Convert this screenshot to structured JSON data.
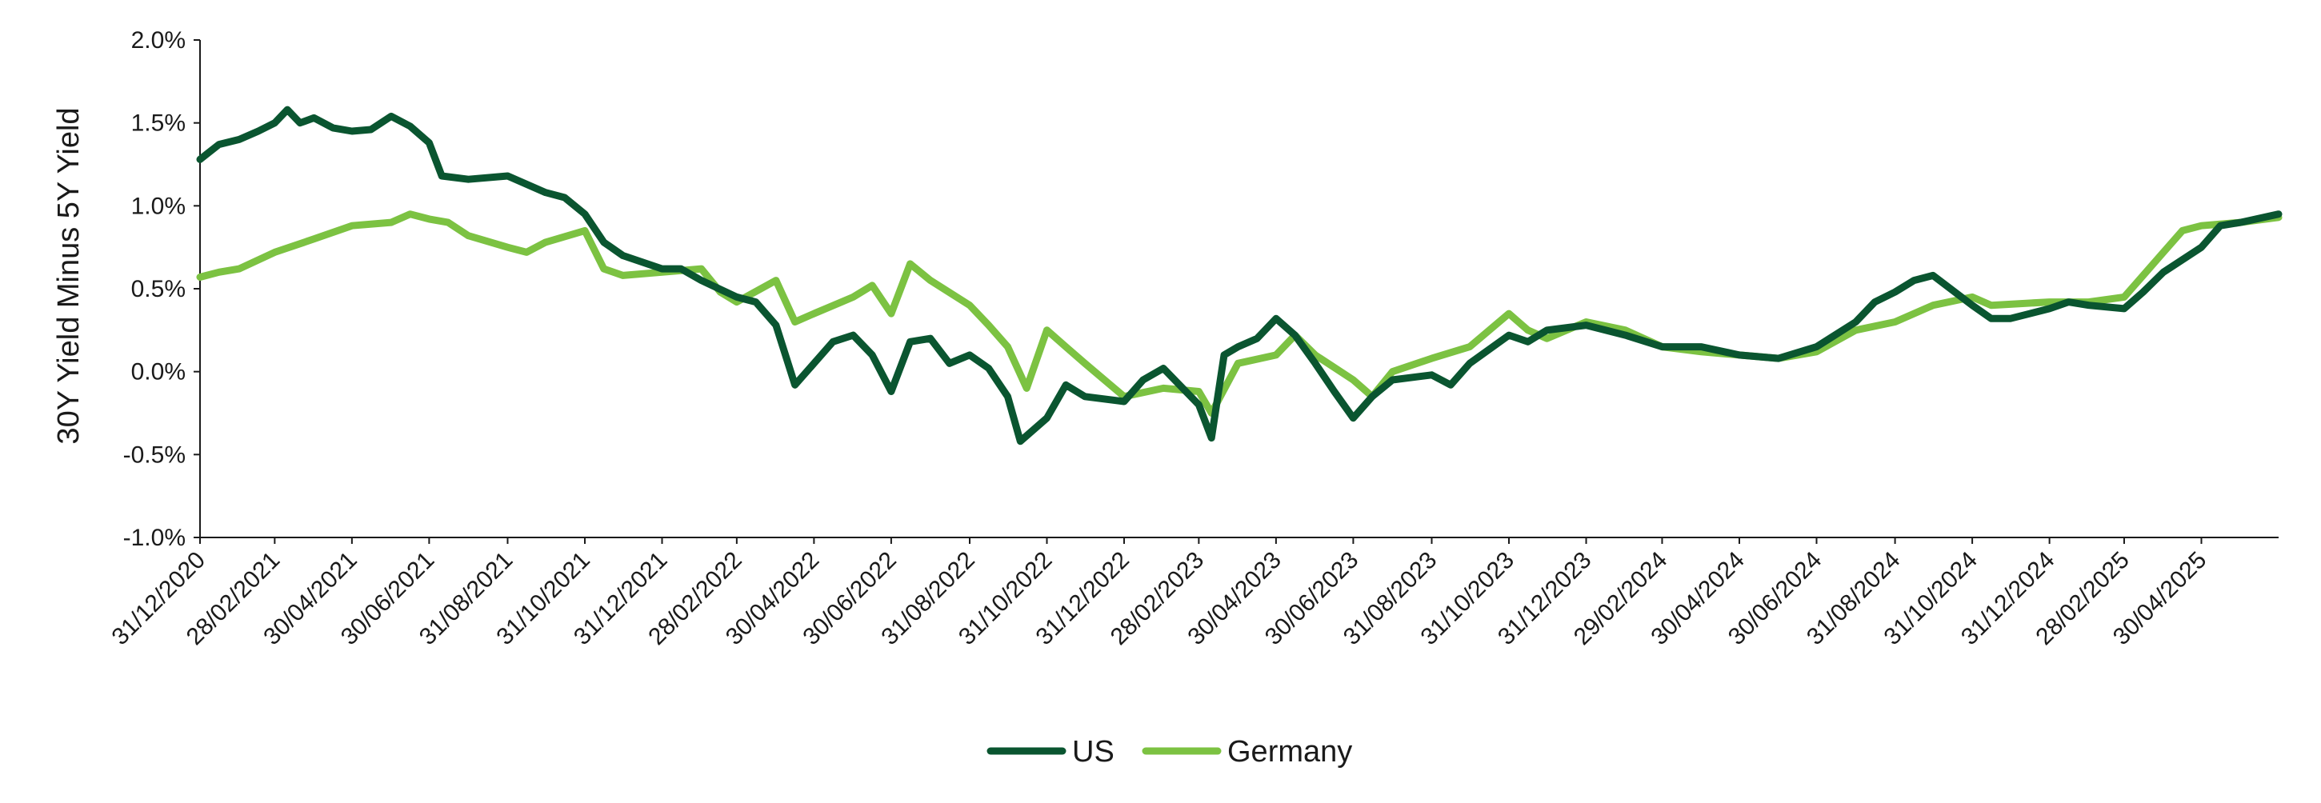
{
  "chart_data": {
    "type": "line",
    "title": "",
    "ylabel": "30Y Yield Minus 5Y Yield",
    "xlabel": "",
    "ylim": [
      -1.0,
      2.0
    ],
    "y_ticks": [
      -1.0,
      -0.5,
      0.0,
      0.5,
      1.0,
      1.5,
      2.0
    ],
    "y_tick_labels": [
      "-1.0%",
      "-0.5%",
      "0.0%",
      "0.5%",
      "1.0%",
      "1.5%",
      "2.0%"
    ],
    "x_tick_labels": [
      "31/12/2020",
      "28/02/2021",
      "30/04/2021",
      "30/06/2021",
      "31/08/2021",
      "31/10/2021",
      "31/12/2021",
      "28/02/2022",
      "30/04/2022",
      "30/06/2022",
      "31/08/2022",
      "31/10/2022",
      "31/12/2022",
      "28/02/2023",
      "30/04/2023",
      "30/06/2023",
      "31/08/2023",
      "31/10/2023",
      "31/12/2023",
      "29/02/2024",
      "30/04/2024",
      "30/06/2024",
      "31/08/2024",
      "31/10/2024",
      "31/12/2024",
      "28/02/2025",
      "30/04/2025"
    ],
    "x_end": "30/06/2025",
    "grid": false,
    "legend_position": "bottom-center",
    "series": [
      {
        "name": "US",
        "color": "#0a5530",
        "points": [
          [
            "31/12/2020",
            1.28
          ],
          [
            "15/01/2021",
            1.37
          ],
          [
            "31/01/2021",
            1.4
          ],
          [
            "15/02/2021",
            1.45
          ],
          [
            "28/02/2021",
            1.5
          ],
          [
            "10/03/2021",
            1.58
          ],
          [
            "20/03/2021",
            1.5
          ],
          [
            "31/03/2021",
            1.53
          ],
          [
            "15/04/2021",
            1.47
          ],
          [
            "30/04/2021",
            1.45
          ],
          [
            "15/05/2021",
            1.46
          ],
          [
            "31/05/2021",
            1.54
          ],
          [
            "15/06/2021",
            1.48
          ],
          [
            "30/06/2021",
            1.38
          ],
          [
            "10/07/2021",
            1.18
          ],
          [
            "31/07/2021",
            1.16
          ],
          [
            "31/08/2021",
            1.18
          ],
          [
            "15/09/2021",
            1.13
          ],
          [
            "30/09/2021",
            1.08
          ],
          [
            "15/10/2021",
            1.05
          ],
          [
            "31/10/2021",
            0.95
          ],
          [
            "15/11/2021",
            0.78
          ],
          [
            "30/11/2021",
            0.7
          ],
          [
            "31/12/2021",
            0.62
          ],
          [
            "15/01/2022",
            0.62
          ],
          [
            "31/01/2022",
            0.55
          ],
          [
            "28/02/2022",
            0.45
          ],
          [
            "15/03/2022",
            0.42
          ],
          [
            "31/03/2022",
            0.28
          ],
          [
            "15/04/2022",
            -0.08
          ],
          [
            "30/04/2022",
            0.05
          ],
          [
            "15/05/2022",
            0.18
          ],
          [
            "31/05/2022",
            0.22
          ],
          [
            "15/06/2022",
            0.1
          ],
          [
            "30/06/2022",
            -0.12
          ],
          [
            "15/07/2022",
            0.18
          ],
          [
            "31/07/2022",
            0.2
          ],
          [
            "15/08/2022",
            0.05
          ],
          [
            "31/08/2022",
            0.1
          ],
          [
            "15/09/2022",
            0.02
          ],
          [
            "30/09/2022",
            -0.15
          ],
          [
            "10/10/2022",
            -0.42
          ],
          [
            "31/10/2022",
            -0.28
          ],
          [
            "15/11/2022",
            -0.08
          ],
          [
            "30/11/2022",
            -0.15
          ],
          [
            "31/12/2022",
            -0.18
          ],
          [
            "15/01/2023",
            -0.05
          ],
          [
            "31/01/2023",
            0.02
          ],
          [
            "28/02/2023",
            -0.2
          ],
          [
            "10/03/2023",
            -0.4
          ],
          [
            "20/03/2023",
            0.1
          ],
          [
            "31/03/2023",
            0.15
          ],
          [
            "15/04/2023",
            0.2
          ],
          [
            "30/04/2023",
            0.32
          ],
          [
            "15/05/2023",
            0.22
          ],
          [
            "31/05/2023",
            0.05
          ],
          [
            "15/06/2023",
            -0.12
          ],
          [
            "30/06/2023",
            -0.28
          ],
          [
            "15/07/2023",
            -0.15
          ],
          [
            "31/07/2023",
            -0.05
          ],
          [
            "31/08/2023",
            -0.02
          ],
          [
            "15/09/2023",
            -0.08
          ],
          [
            "30/09/2023",
            0.05
          ],
          [
            "31/10/2023",
            0.22
          ],
          [
            "15/11/2023",
            0.18
          ],
          [
            "30/11/2023",
            0.25
          ],
          [
            "31/12/2023",
            0.28
          ],
          [
            "31/01/2024",
            0.22
          ],
          [
            "29/02/2024",
            0.15
          ],
          [
            "31/03/2024",
            0.15
          ],
          [
            "30/04/2024",
            0.1
          ],
          [
            "31/05/2024",
            0.08
          ],
          [
            "30/06/2024",
            0.15
          ],
          [
            "31/07/2024",
            0.3
          ],
          [
            "15/08/2024",
            0.42
          ],
          [
            "31/08/2024",
            0.48
          ],
          [
            "15/09/2024",
            0.55
          ],
          [
            "30/09/2024",
            0.58
          ],
          [
            "31/10/2024",
            0.4
          ],
          [
            "15/11/2024",
            0.32
          ],
          [
            "30/11/2024",
            0.32
          ],
          [
            "31/12/2024",
            0.38
          ],
          [
            "15/01/2025",
            0.42
          ],
          [
            "31/01/2025",
            0.4
          ],
          [
            "28/02/2025",
            0.38
          ],
          [
            "15/03/2025",
            0.48
          ],
          [
            "31/03/2025",
            0.6
          ],
          [
            "30/04/2025",
            0.75
          ],
          [
            "15/05/2025",
            0.88
          ],
          [
            "31/05/2025",
            0.9
          ],
          [
            "30/06/2025",
            0.95
          ]
        ]
      },
      {
        "name": "Germany",
        "color": "#7cc242",
        "points": [
          [
            "31/12/2020",
            0.57
          ],
          [
            "15/01/2021",
            0.6
          ],
          [
            "31/01/2021",
            0.62
          ],
          [
            "28/02/2021",
            0.72
          ],
          [
            "31/03/2021",
            0.8
          ],
          [
            "30/04/2021",
            0.88
          ],
          [
            "31/05/2021",
            0.9
          ],
          [
            "15/06/2021",
            0.95
          ],
          [
            "30/06/2021",
            0.92
          ],
          [
            "15/07/2021",
            0.9
          ],
          [
            "31/07/2021",
            0.82
          ],
          [
            "31/08/2021",
            0.75
          ],
          [
            "15/09/2021",
            0.72
          ],
          [
            "30/09/2021",
            0.78
          ],
          [
            "31/10/2021",
            0.85
          ],
          [
            "15/11/2021",
            0.62
          ],
          [
            "30/11/2021",
            0.58
          ],
          [
            "31/12/2021",
            0.6
          ],
          [
            "31/01/2022",
            0.62
          ],
          [
            "15/02/2022",
            0.48
          ],
          [
            "28/02/2022",
            0.42
          ],
          [
            "31/03/2022",
            0.55
          ],
          [
            "15/04/2022",
            0.3
          ],
          [
            "30/04/2022",
            0.35
          ],
          [
            "31/05/2022",
            0.45
          ],
          [
            "15/06/2022",
            0.52
          ],
          [
            "30/06/2022",
            0.35
          ],
          [
            "15/07/2022",
            0.65
          ],
          [
            "31/07/2022",
            0.55
          ],
          [
            "31/08/2022",
            0.4
          ],
          [
            "15/09/2022",
            0.28
          ],
          [
            "30/09/2022",
            0.15
          ],
          [
            "15/10/2022",
            -0.1
          ],
          [
            "31/10/2022",
            0.25
          ],
          [
            "15/11/2022",
            0.15
          ],
          [
            "30/11/2022",
            0.05
          ],
          [
            "31/12/2022",
            -0.15
          ],
          [
            "31/01/2023",
            -0.1
          ],
          [
            "28/02/2023",
            -0.12
          ],
          [
            "10/03/2023",
            -0.25
          ],
          [
            "31/03/2023",
            0.05
          ],
          [
            "30/04/2023",
            0.1
          ],
          [
            "15/05/2023",
            0.22
          ],
          [
            "31/05/2023",
            0.1
          ],
          [
            "30/06/2023",
            -0.05
          ],
          [
            "15/07/2023",
            -0.15
          ],
          [
            "31/07/2023",
            0.0
          ],
          [
            "31/08/2023",
            0.08
          ],
          [
            "30/09/2023",
            0.15
          ],
          [
            "31/10/2023",
            0.35
          ],
          [
            "15/11/2023",
            0.25
          ],
          [
            "30/11/2023",
            0.2
          ],
          [
            "31/12/2023",
            0.3
          ],
          [
            "31/01/2024",
            0.25
          ],
          [
            "29/02/2024",
            0.15
          ],
          [
            "31/03/2024",
            0.12
          ],
          [
            "30/04/2024",
            0.1
          ],
          [
            "31/05/2024",
            0.08
          ],
          [
            "30/06/2024",
            0.12
          ],
          [
            "31/07/2024",
            0.25
          ],
          [
            "31/08/2024",
            0.3
          ],
          [
            "30/09/2024",
            0.4
          ],
          [
            "31/10/2024",
            0.45
          ],
          [
            "15/11/2024",
            0.4
          ],
          [
            "31/12/2024",
            0.42
          ],
          [
            "31/01/2025",
            0.42
          ],
          [
            "28/02/2025",
            0.45
          ],
          [
            "15/03/2025",
            0.58
          ],
          [
            "31/03/2025",
            0.72
          ],
          [
            "15/04/2025",
            0.85
          ],
          [
            "30/04/2025",
            0.88
          ],
          [
            "31/05/2025",
            0.9
          ],
          [
            "30/06/2025",
            0.93
          ]
        ]
      }
    ]
  }
}
